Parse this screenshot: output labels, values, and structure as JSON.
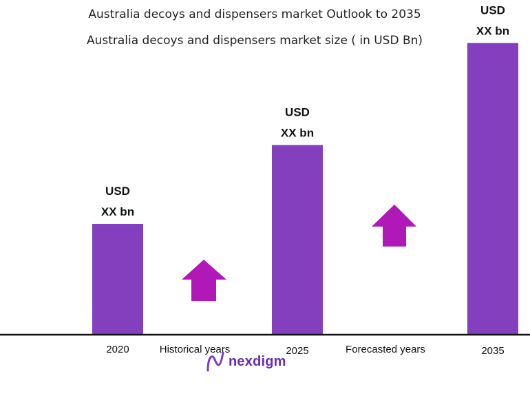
{
  "chart_data": {
    "type": "bar",
    "title": "Australia decoys and dispensers market Outlook to 2035",
    "subtitle": "Australia decoys and dispensers market size ( in USD Bn)",
    "categories": [
      "2020",
      "2025",
      "2035"
    ],
    "values": [
      3.8,
      6.5,
      10.0
    ],
    "value_labels": [
      [
        "USD",
        "XX bn"
      ],
      [
        "USD",
        "XX bn"
      ],
      [
        "USD",
        "XX bn"
      ]
    ],
    "period_labels": [
      "Historical years",
      "Forecasted years"
    ],
    "ylim": [
      0,
      11
    ],
    "grid": false,
    "legend": "none"
  },
  "colors": {
    "bar": "#843fbe",
    "arrow": "#b018b8",
    "axis": "#111111",
    "logo": "#6a2bb8"
  },
  "icons": {
    "growth_arrow": "up-arrow-icon",
    "logo_mark": "nexdigm-logo-icon"
  },
  "logo": {
    "text": "nexdigm"
  }
}
